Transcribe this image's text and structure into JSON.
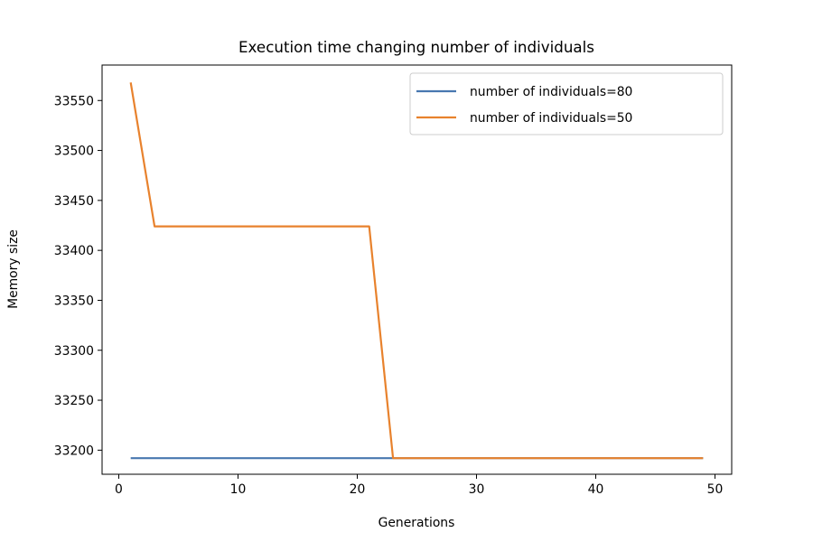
{
  "chart_data": {
    "type": "line",
    "title": "Execution time changing number of individuals",
    "xlabel": "Generations",
    "ylabel": "Memory size",
    "xlim": [
      -1.4,
      51.4
    ],
    "ylim": [
      33175.9,
      33585.5
    ],
    "xticks": [
      0,
      10,
      20,
      30,
      40,
      50
    ],
    "yticks": [
      33200,
      33250,
      33300,
      33350,
      33400,
      33450,
      33500,
      33550
    ],
    "grid": false,
    "legend_position": "top-right",
    "series": [
      {
        "name": "number of individuals=80",
        "color": "#4878b0",
        "x": [
          1,
          49
        ],
        "y": [
          33192,
          33192
        ]
      },
      {
        "name": "number of individuals=50",
        "color": "#e8822d",
        "x": [
          1,
          3,
          21,
          23,
          49
        ],
        "y": [
          33568,
          33424,
          33424,
          33192,
          33192
        ]
      }
    ]
  }
}
